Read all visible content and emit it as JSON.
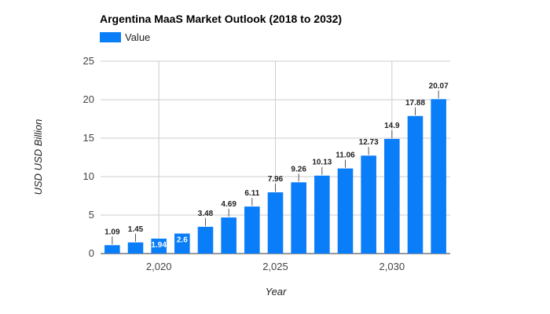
{
  "chart_data": {
    "type": "bar",
    "title": "Argentina MaaS Market Outlook (2018 to 2032)",
    "xlabel": "Year",
    "ylabel": "USD USD Billion",
    "legend": {
      "position": "top-left",
      "entries": [
        "Value"
      ]
    },
    "series": [
      {
        "name": "Value",
        "color": "#0a7df9",
        "x": [
          2018,
          2019,
          2020,
          2021,
          2022,
          2023,
          2024,
          2025,
          2026,
          2027,
          2028,
          2029,
          2030,
          2031,
          2032
        ],
        "values": [
          1.09,
          1.45,
          1.94,
          2.6,
          3.48,
          4.69,
          6.11,
          7.96,
          9.26,
          10.13,
          11.06,
          12.73,
          14.9,
          17.88,
          20.07
        ],
        "labels": [
          "1.09",
          "1.45",
          "1.94",
          "2.6",
          "3.48",
          "4.69",
          "6.11",
          "7.96",
          "9.26",
          "10.13",
          "11.06",
          "12.73",
          "14.9",
          "17.88",
          "20.07"
        ]
      }
    ],
    "xlim": [
      2017.5,
      2032.5
    ],
    "ylim": [
      0,
      25
    ],
    "yticks": [
      0,
      5,
      10,
      15,
      20,
      25
    ],
    "ytick_labels": [
      "0",
      "5",
      "10",
      "15",
      "20",
      "25"
    ],
    "xticks": [
      2020,
      2025,
      2030
    ],
    "xtick_labels": [
      "2,020",
      "2,025",
      "2,030"
    ],
    "grid": true,
    "inside_label_threshold": 3
  }
}
